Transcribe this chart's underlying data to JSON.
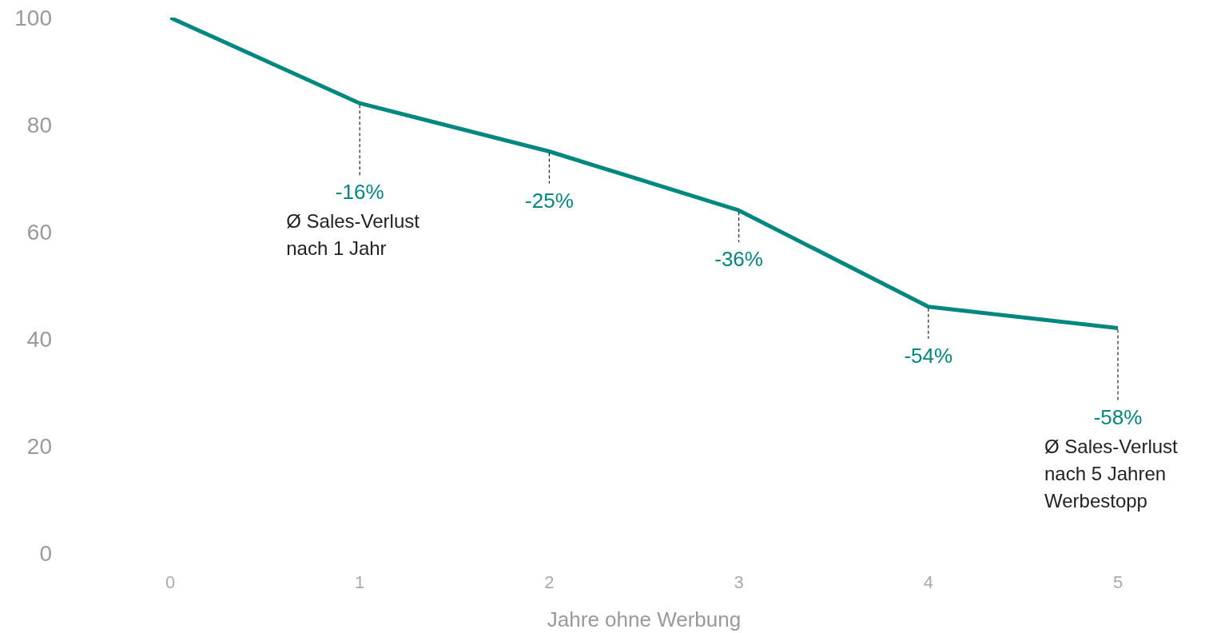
{
  "chart_data": {
    "type": "line",
    "xlabel": "Jahre ohne Werbung",
    "x": [
      0,
      1,
      2,
      3,
      4,
      5
    ],
    "series": [
      {
        "color": "#00877f",
        "values": [
          100,
          84,
          75,
          64,
          46,
          42
        ]
      }
    ],
    "xlim": [
      0,
      5
    ],
    "xticks": [
      0,
      1,
      2,
      3,
      4,
      5
    ],
    "ylim": [
      0,
      100
    ],
    "yticks": [
      0,
      20,
      40,
      60,
      80,
      100
    ],
    "grid": false,
    "legend": false,
    "marker": "none",
    "line_style": "solid",
    "annotations": [
      {
        "text": "-16%\nØ Sales-Verlust\nnach 1 Jahr",
        "x": 1,
        "y": 84
      },
      {
        "text": "-25%",
        "x": 2,
        "y": 75
      },
      {
        "text": "-36%",
        "x": 3,
        "y": 64
      },
      {
        "text": "-54%",
        "x": 4,
        "y": 46
      },
      {
        "text": "-58%\nØ Sales-Verlust\nnach 5 Jahren\nWerbestopp",
        "x": 5,
        "y": 42
      }
    ]
  }
}
